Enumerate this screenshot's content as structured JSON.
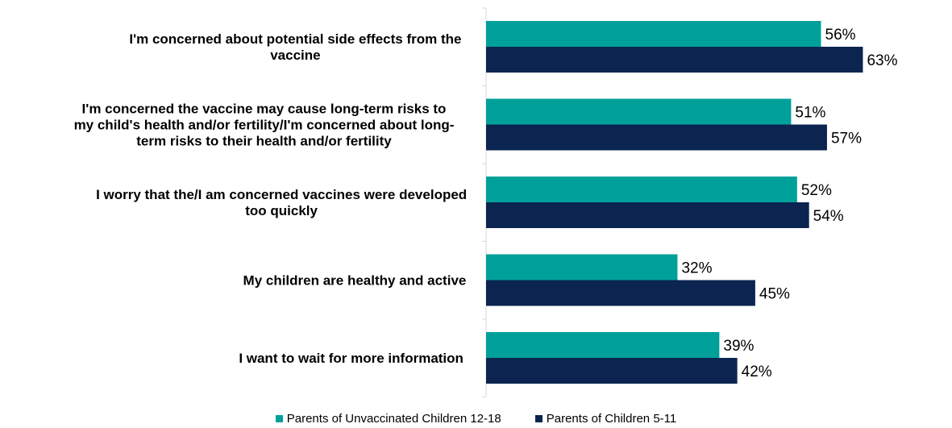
{
  "chart_data": {
    "type": "bar",
    "orientation": "horizontal",
    "title": "",
    "xlabel": "",
    "ylabel": "",
    "xlim": [
      0,
      100
    ],
    "grid": false,
    "legend_position": "bottom",
    "categories": [
      [
        "I'm concerned about potential side effects from the",
        "vaccine"
      ],
      [
        "I'm concerned the vaccine may cause long-term risks to",
        "my child's health and/or fertility/I'm concerned about long-",
        "term risks to their health and/or fertility"
      ],
      [
        "I worry that the/I am concerned vaccines were developed",
        "too quickly"
      ],
      [
        "My children are healthy and active"
      ],
      [
        "I want to wait for more information"
      ]
    ],
    "series": [
      {
        "name": "Parents of Unvaccinated Children 12-18",
        "color": "#00A09A",
        "values": [
          56,
          51,
          52,
          32,
          39
        ],
        "labels": [
          "56%",
          "51%",
          "52%",
          "32%",
          "39%"
        ]
      },
      {
        "name": "Parents of Children 5-11",
        "color": "#0B2550",
        "values": [
          63,
          57,
          54,
          45,
          42
        ],
        "labels": [
          "63%",
          "57%",
          "54%",
          "45%",
          "42%"
        ]
      }
    ]
  }
}
